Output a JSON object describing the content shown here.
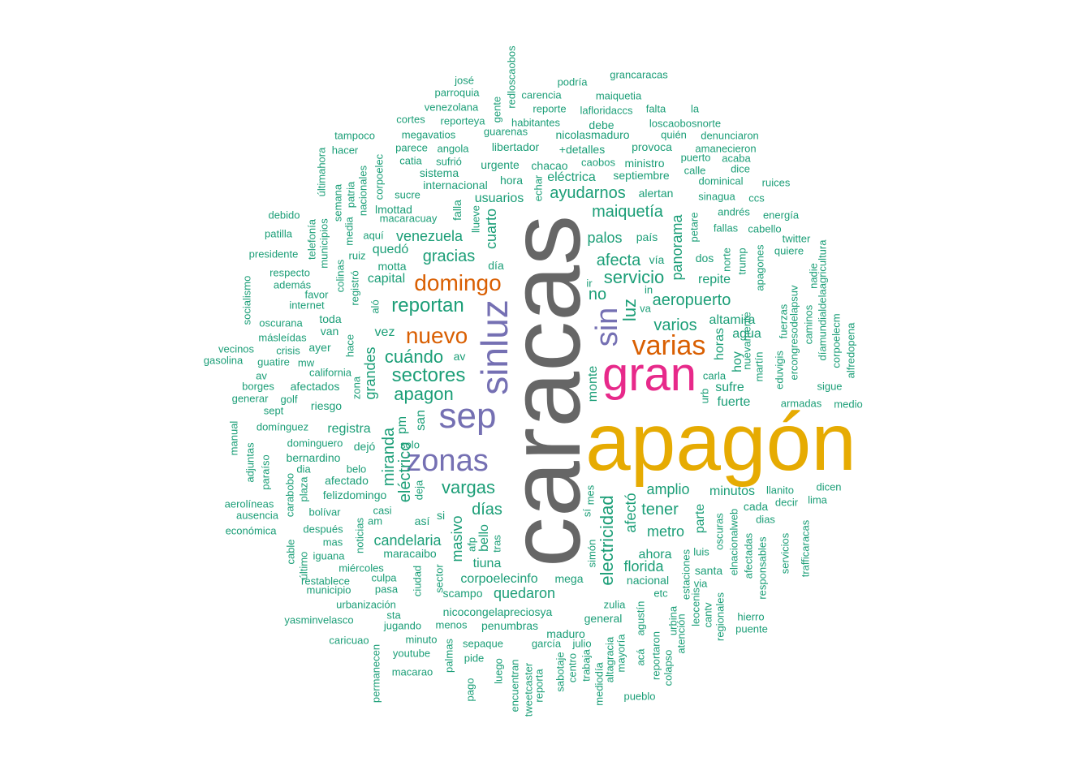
{
  "colors": {
    "teal": "#1b9e77",
    "grey": "#666666",
    "gold": "#e6ab02",
    "pink": "#e7298a",
    "purple": "#7570b3",
    "orange": "#d95f02"
  },
  "words": {
    "caracas": "caracas",
    "apagon_main": "apagón",
    "gran": "gran",
    "sinluz": "sinluz",
    "sep": "sep",
    "zonas": "zonas",
    "sin": "sin",
    "varias": "varias",
    "domingo": "domingo",
    "nuevo": "nuevo",
    "reportan": "reportan",
    "sectores": "sectores",
    "apagon": "apagon",
    "cuando": "cuándo",
    "vargas": "vargas",
    "electricidad": "electricidad",
    "luz": "luz",
    "servicio": "servicio",
    "afecta": "afecta",
    "maiquetia": "maiquetía",
    "ayudarnos": "ayudarnos",
    "gracias": "gracias",
    "venezuela": "venezuela",
    "cuarto": "cuarto",
    "aeropuerto": "aeropuerto",
    "varios": "varios",
    "panorama": "panorama",
    "palos": "palos",
    "no": "no",
    "miranda": "miranda",
    "electrico": "eléctrico",
    "grandes": "grandes",
    "candelaria": "candelaria",
    "masivo": "masivo",
    "dias": "días",
    "amplio": "amplio",
    "tener": "tener",
    "metro": "metro",
    "afecto": "afectó",
    "quedaron": "quedaron",
    "corpoelecinfo": "corpoelecinfo",
    "florida": "florida",
    "tiuna": "tiuna",
    "bello": "bello",
    "registra": "registra",
    "pm": "pm",
    "san": "san",
    "parte": "parte",
    "ahora": "ahora",
    "nacional": "nacional",
    "minutos": "minutos",
    "repite": "repite",
    "horas": "horas",
    "altamira": "altamira",
    "agua": "agua",
    "hoy": "hoy",
    "fuerte": "fuerte",
    "sufre": "sufre",
    "monte": "monte",
    "quedo": "quedó",
    "capital": "capital",
    "vez": "vez",
    "av1": "av",
    "usuarios": "usuarios",
    "electrica": "eléctrica",
    "hora": "hora",
    "chacao": "chacao",
    "septiembre": "septiembre",
    "alertan": "alertan",
    "falla": "falla",
    "lmottad": "lmottad",
    "macaracuay": "macaracuay",
    "motta": "motta",
    "dia1": "día",
    "internacional": "internacional",
    "sistema": "sistema",
    "urgente": "urgente",
    "libertador": "libertador",
    "caobos": "caobos",
    "ministro": "ministro",
    "detalles": "+detalles",
    "nicolasmaduro": "nicolasmaduro",
    "provoca": "provoca",
    "debe": "debe",
    "losacaobosnorte": "loscaobosnorte",
    "quien": "quién",
    "denunciaron": "denunciaron",
    "amanecieron": "amanecieron",
    "puerto": "puerto",
    "acaba": "acaba",
    "calle": "calle",
    "dice": "dice",
    "dominical": "dominical",
    "ruices": "ruices",
    "sinagua": "sinagua",
    "ccs": "ccs",
    "andres": "andrés",
    "energia": "energía",
    "fallas": "fallas",
    "cabello": "cabello",
    "twitter": "twitter",
    "quiere": "quiere",
    "petare": "petare",
    "pais": "país",
    "via1": "vía",
    "dos": "dos",
    "norte": "norte",
    "trump": "trump",
    "apagones": "apagones",
    "in": "in",
    "ir": "ir",
    "va": "va",
    "nuevamente": "nuevamente",
    "martin": "martín",
    "eduvigis": "eduvigis",
    "fuerzas": "fuerzas",
    "ercongresodelapsuv": "ercongresodelapsuv",
    "caminos": "caminos",
    "nadie": "nadie",
    "diamundialdelaagricultura": "díamundialdelaagricultura",
    "corpoelecm": "corpoelecm",
    "alfredopena": "alfredopena",
    "sigue": "sigue",
    "armadas": "armadas",
    "medio": "medio",
    "carla": "carla",
    "urb": "urb",
    "podria": "podría",
    "grancaracas": "grancaracas",
    "jose": "josé",
    "parroquia": "parroquia",
    "redloscaobos": "redloscaobos",
    "carencia": "carencia",
    "maiquetia2": "maiquetia",
    "reporte": "reporte",
    "lafloridaccs": "lafloridaccs",
    "falta": "falta",
    "la": "la",
    "venezolana": "venezolana",
    "gente": "gente",
    "habitantes": "habitantes",
    "cortes": "cortes",
    "reporteya": "reporteya",
    "megavatios": "megavatios",
    "guarenas": "guarenas",
    "tampoco": "tampoco",
    "parece": "parece",
    "angola": "angola",
    "hacer": "hacer",
    "catia": "catia",
    "sufrio": "sufrió",
    "corpoelec": "corpoelec",
    "ultimahora": "últimahora",
    "sucre": "sucre",
    "echar": "echar",
    "llueve": "llueve",
    "debido": "debido",
    "semana": "semana",
    "patria": "patria",
    "nacionales": "nacionales",
    "media": "media",
    "telefonia": "telefonía",
    "patilla": "patilla",
    "aqui": "aquí",
    "municipios": "municipios",
    "presidente": "presidente",
    "ruiz": "ruiz",
    "respecto": "respecto",
    "colinas": "colinas",
    "registro": "registró",
    "ademas": "además",
    "favor": "favor",
    "socialismo": "socialismo",
    "internet": "internet",
    "alo": "aló",
    "oscurana": "oscurana",
    "toda": "toda",
    "masleidas": "másleídas",
    "van": "van",
    "vecinos": "vecinos",
    "crisis": "crisis",
    "ayer": "ayer",
    "gasolina": "gasolina",
    "guatire": "guatire",
    "mw": "mw",
    "hace": "hace",
    "california": "california",
    "av2": "av",
    "borges": "borges",
    "afectados": "afectados",
    "zona": "zona",
    "generar": "generar",
    "golf": "golf",
    "riesgo": "riesgo",
    "sept": "sept",
    "manual": "manual",
    "dominguez": "domínguez",
    "dominguero": "dominguero",
    "dejo": "dejó",
    "solo": "solo",
    "adjuntas": "adjuntas",
    "paraiso": "paraíso",
    "bernardino": "bernardino",
    "dia2": "dia",
    "belo": "belo",
    "afectado": "afectado",
    "carabobo": "carabobo",
    "plaza": "plaza",
    "felizdomingo": "felizdomingo",
    "deja": "deja",
    "aerolineas": "aerolíneas",
    "ausencia": "ausencia",
    "bolivar": "bolívar",
    "casi": "casi",
    "am": "am",
    "asi": "así",
    "si1": "si",
    "economica": "económica",
    "despues": "después",
    "noticias": "noticias",
    "mas": "mas",
    "cable": "cable",
    "ultimo": "último",
    "iguana": "iguana",
    "maracaibo": "maracaibo",
    "afp": "afp",
    "tras": "tras",
    "miercoles": "miércoles",
    "culpa": "culpa",
    "restablece": "restablece",
    "municipio": "municipio",
    "pasa": "pasa",
    "ciudad": "ciudad",
    "sector": "sector",
    "scampo": "scampo",
    "mega": "mega",
    "urbanizacion": "urbanización",
    "nicocongelapreciosya": "nicocongelapreciosya",
    "sta": "sta",
    "yasminvelasco": "yasminvelasco",
    "jugando": "jugando",
    "menos": "menos",
    "penumbras": "penumbras",
    "caricuao": "caricuao",
    "minuto": "minuto",
    "palmas": "palmas",
    "sepaque": "sepaque",
    "garcia": "garcía",
    "julio": "julio",
    "maduro": "maduro",
    "youtube": "youtube",
    "pide": "pide",
    "permanecen": "permanecen",
    "macarao": "macarao",
    "pago": "pago",
    "luego": "luego",
    "encuentran": "encuentran",
    "tweetcaster": "tweetcaster",
    "reporta": "reporta",
    "sabotaje": "sabotaje",
    "centro": "centro",
    "trabaja": "trabaja",
    "mediodia": "mediodía",
    "altagracia": "altagracia",
    "mayoria": "mayoría",
    "general": "general",
    "aca": "acá",
    "agustin": "agustín",
    "zulia": "zulia",
    "reportaron": "reportaron",
    "colapso": "colapso",
    "etc": "etc",
    "atencion": "atención",
    "urbina": "urbina",
    "estaciones": "estaciones",
    "leocenis": "leocenis",
    "cantv": "cantv",
    "via2": "via",
    "regionales": "regionales",
    "santa": "santa",
    "luis": "luis",
    "oscuras": "oscuras",
    "elnacionalweb": "elnacionalweb",
    "afectadas": "afectadas",
    "cada": "cada",
    "responsables": "responsables",
    "dias2": "dias",
    "decir": "decir",
    "llanito": "llanito",
    "servicios": "servicios",
    "trafficaracas": "trafficaracas",
    "lima": "lima",
    "dicen": "dicen",
    "hierro": "hierro",
    "puente": "puente",
    "pueblo": "pueblo",
    "simon": "simón",
    "si2": "sí",
    "mes": "mes"
  }
}
